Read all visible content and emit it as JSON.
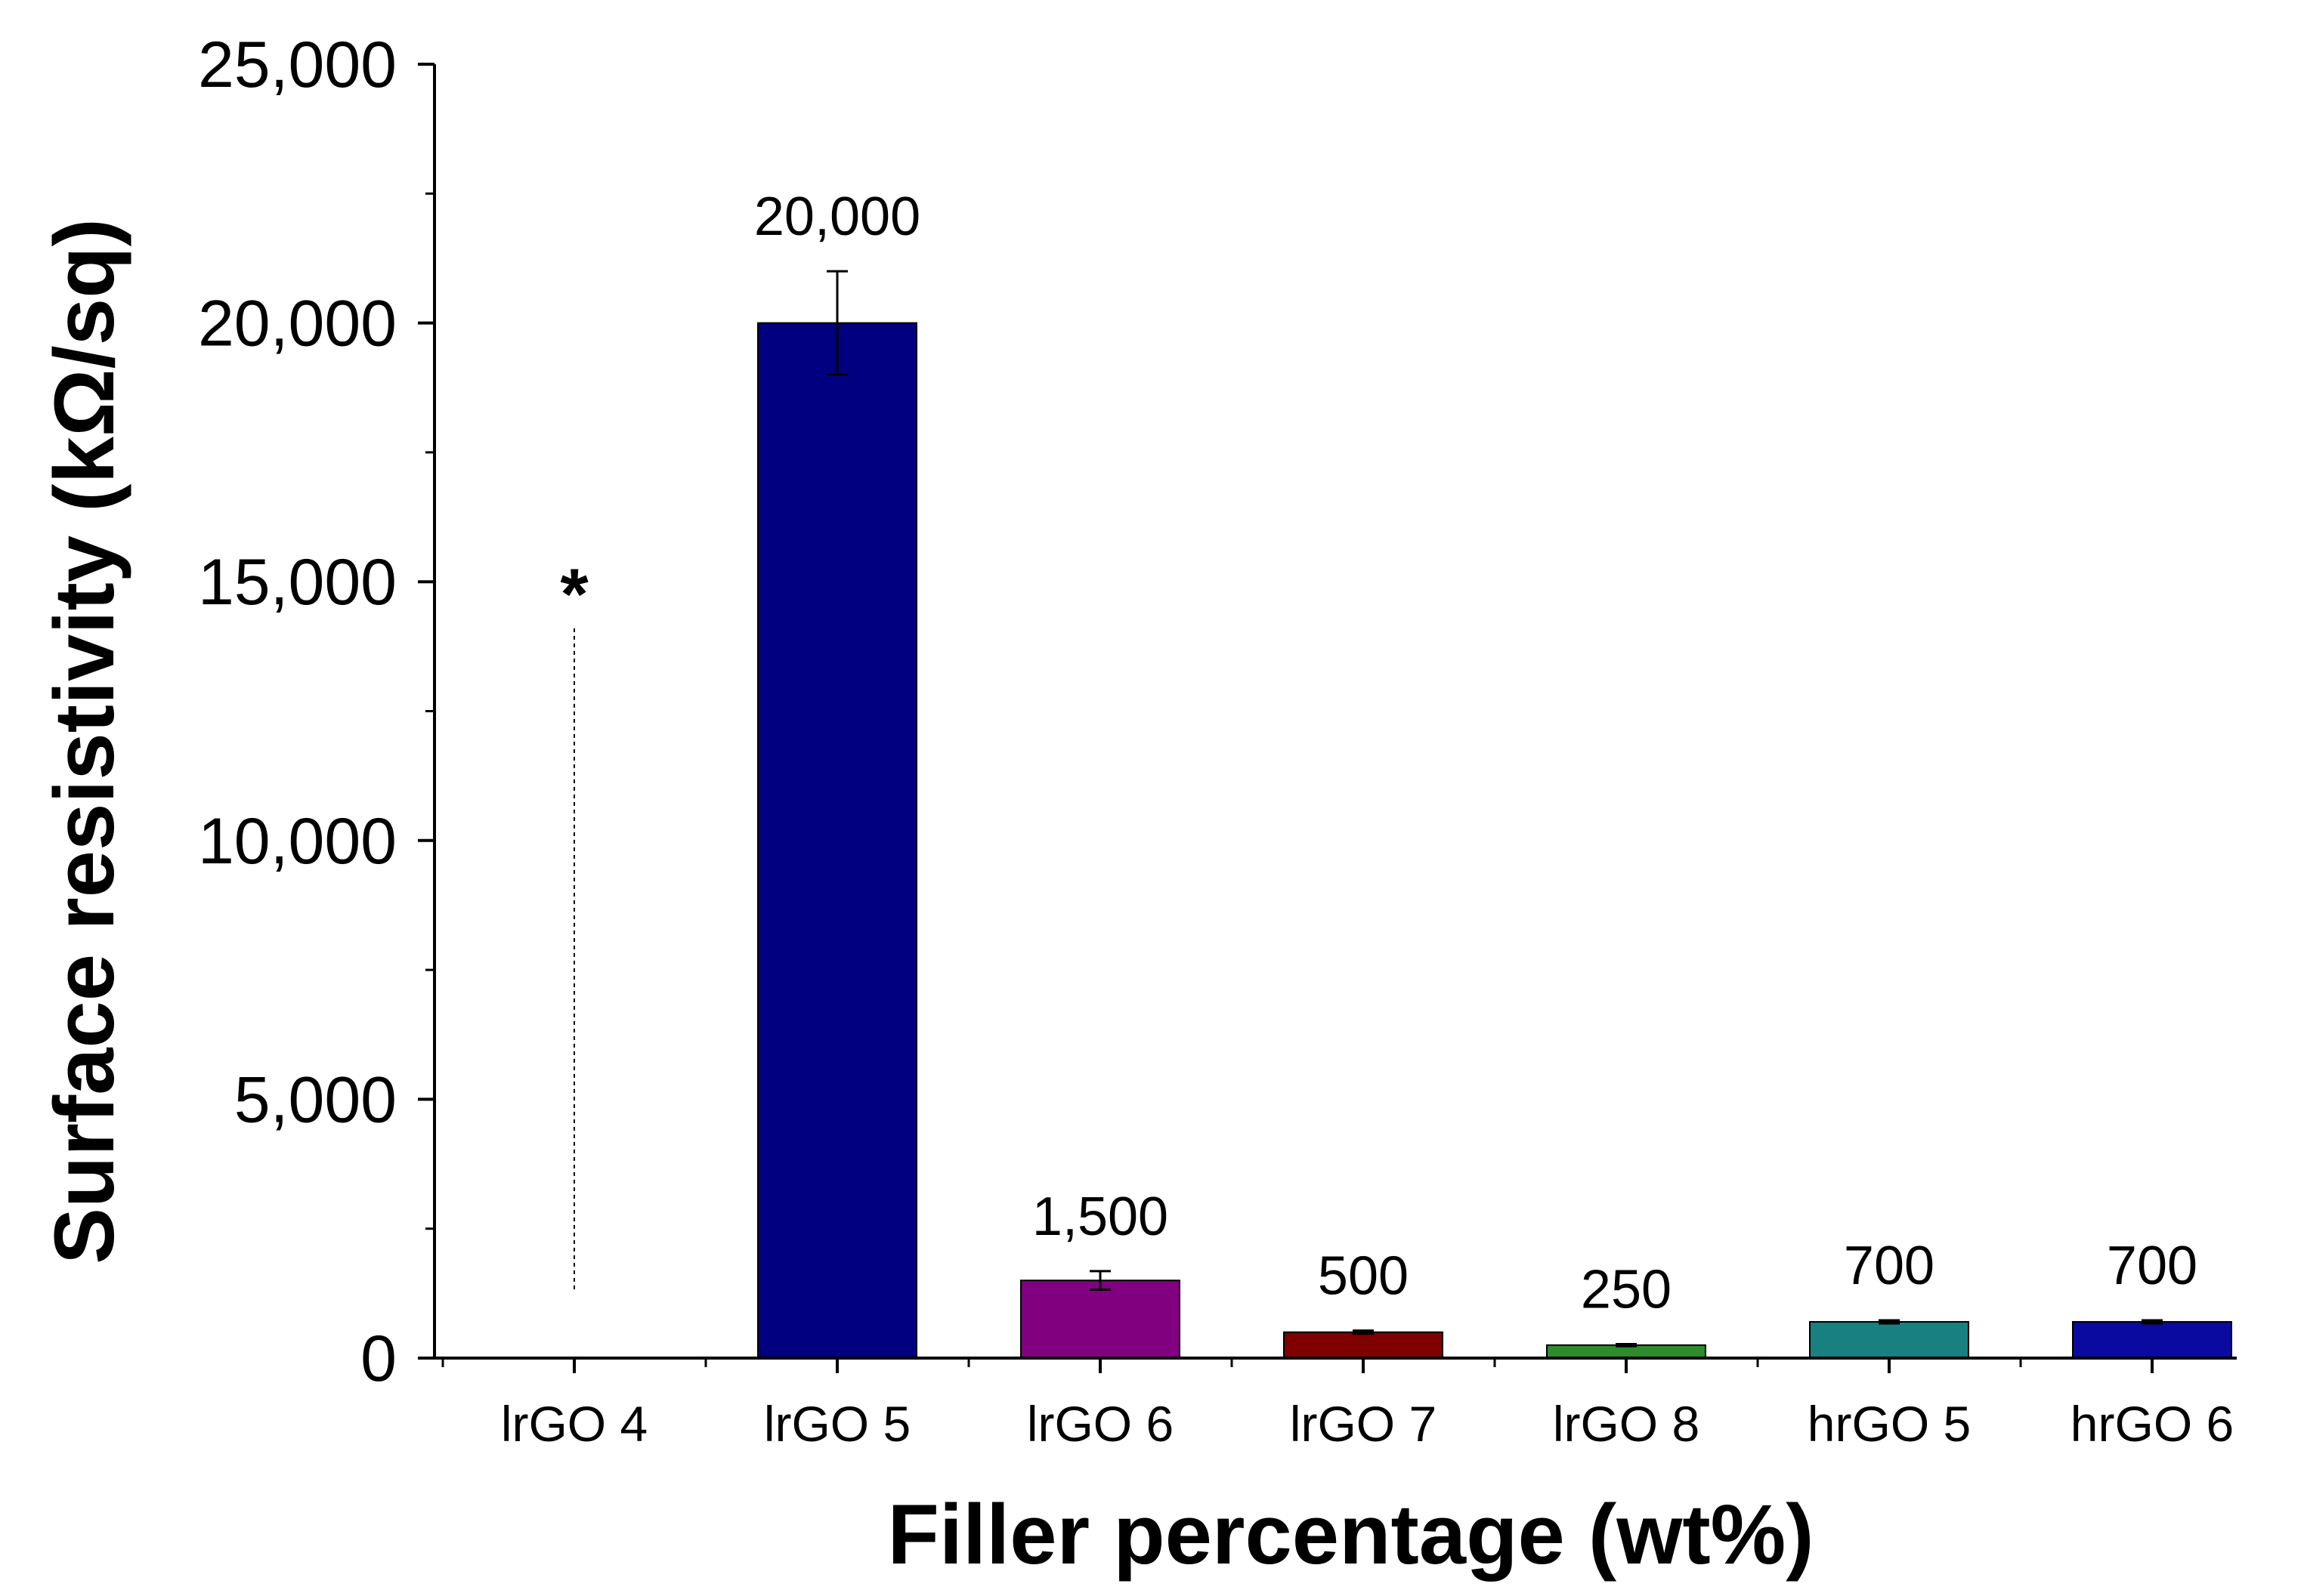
{
  "chart_data": {
    "type": "bar",
    "title": "",
    "xlabel": "Filler percentage (wt%)",
    "ylabel": "Surface resistivity (kΩ/sq)",
    "ylim": [
      0,
      25000
    ],
    "yticks": [
      0,
      5000,
      10000,
      15000,
      20000,
      25000
    ],
    "ytick_labels": [
      "0",
      "5,000",
      "10,000",
      "15,000",
      "20,000",
      "25,000"
    ],
    "categories": [
      "lrGO 4",
      "lrGO 5",
      "lrGO 6",
      "lrGO 7",
      "lrGO 8",
      "hrGO 5",
      "hrGO 6"
    ],
    "values": [
      null,
      20000,
      1500,
      500,
      250,
      700,
      700
    ],
    "errors": [
      null,
      1000,
      180,
      30,
      20,
      30,
      30
    ],
    "data_labels": [
      "",
      "20,000",
      "1,500",
      "500",
      "250",
      "700",
      "700"
    ],
    "colors": [
      "#ffffff",
      "#000080",
      "#800080",
      "#800000",
      "#2e8b2e",
      "#188080",
      "#0a0aa0"
    ],
    "annotations": [
      {
        "text": "*",
        "category": "lrGO 4",
        "y": 15300,
        "note_line_from": 14100,
        "note_line_to": 1300
      }
    ],
    "grid": false,
    "legend": "none"
  }
}
